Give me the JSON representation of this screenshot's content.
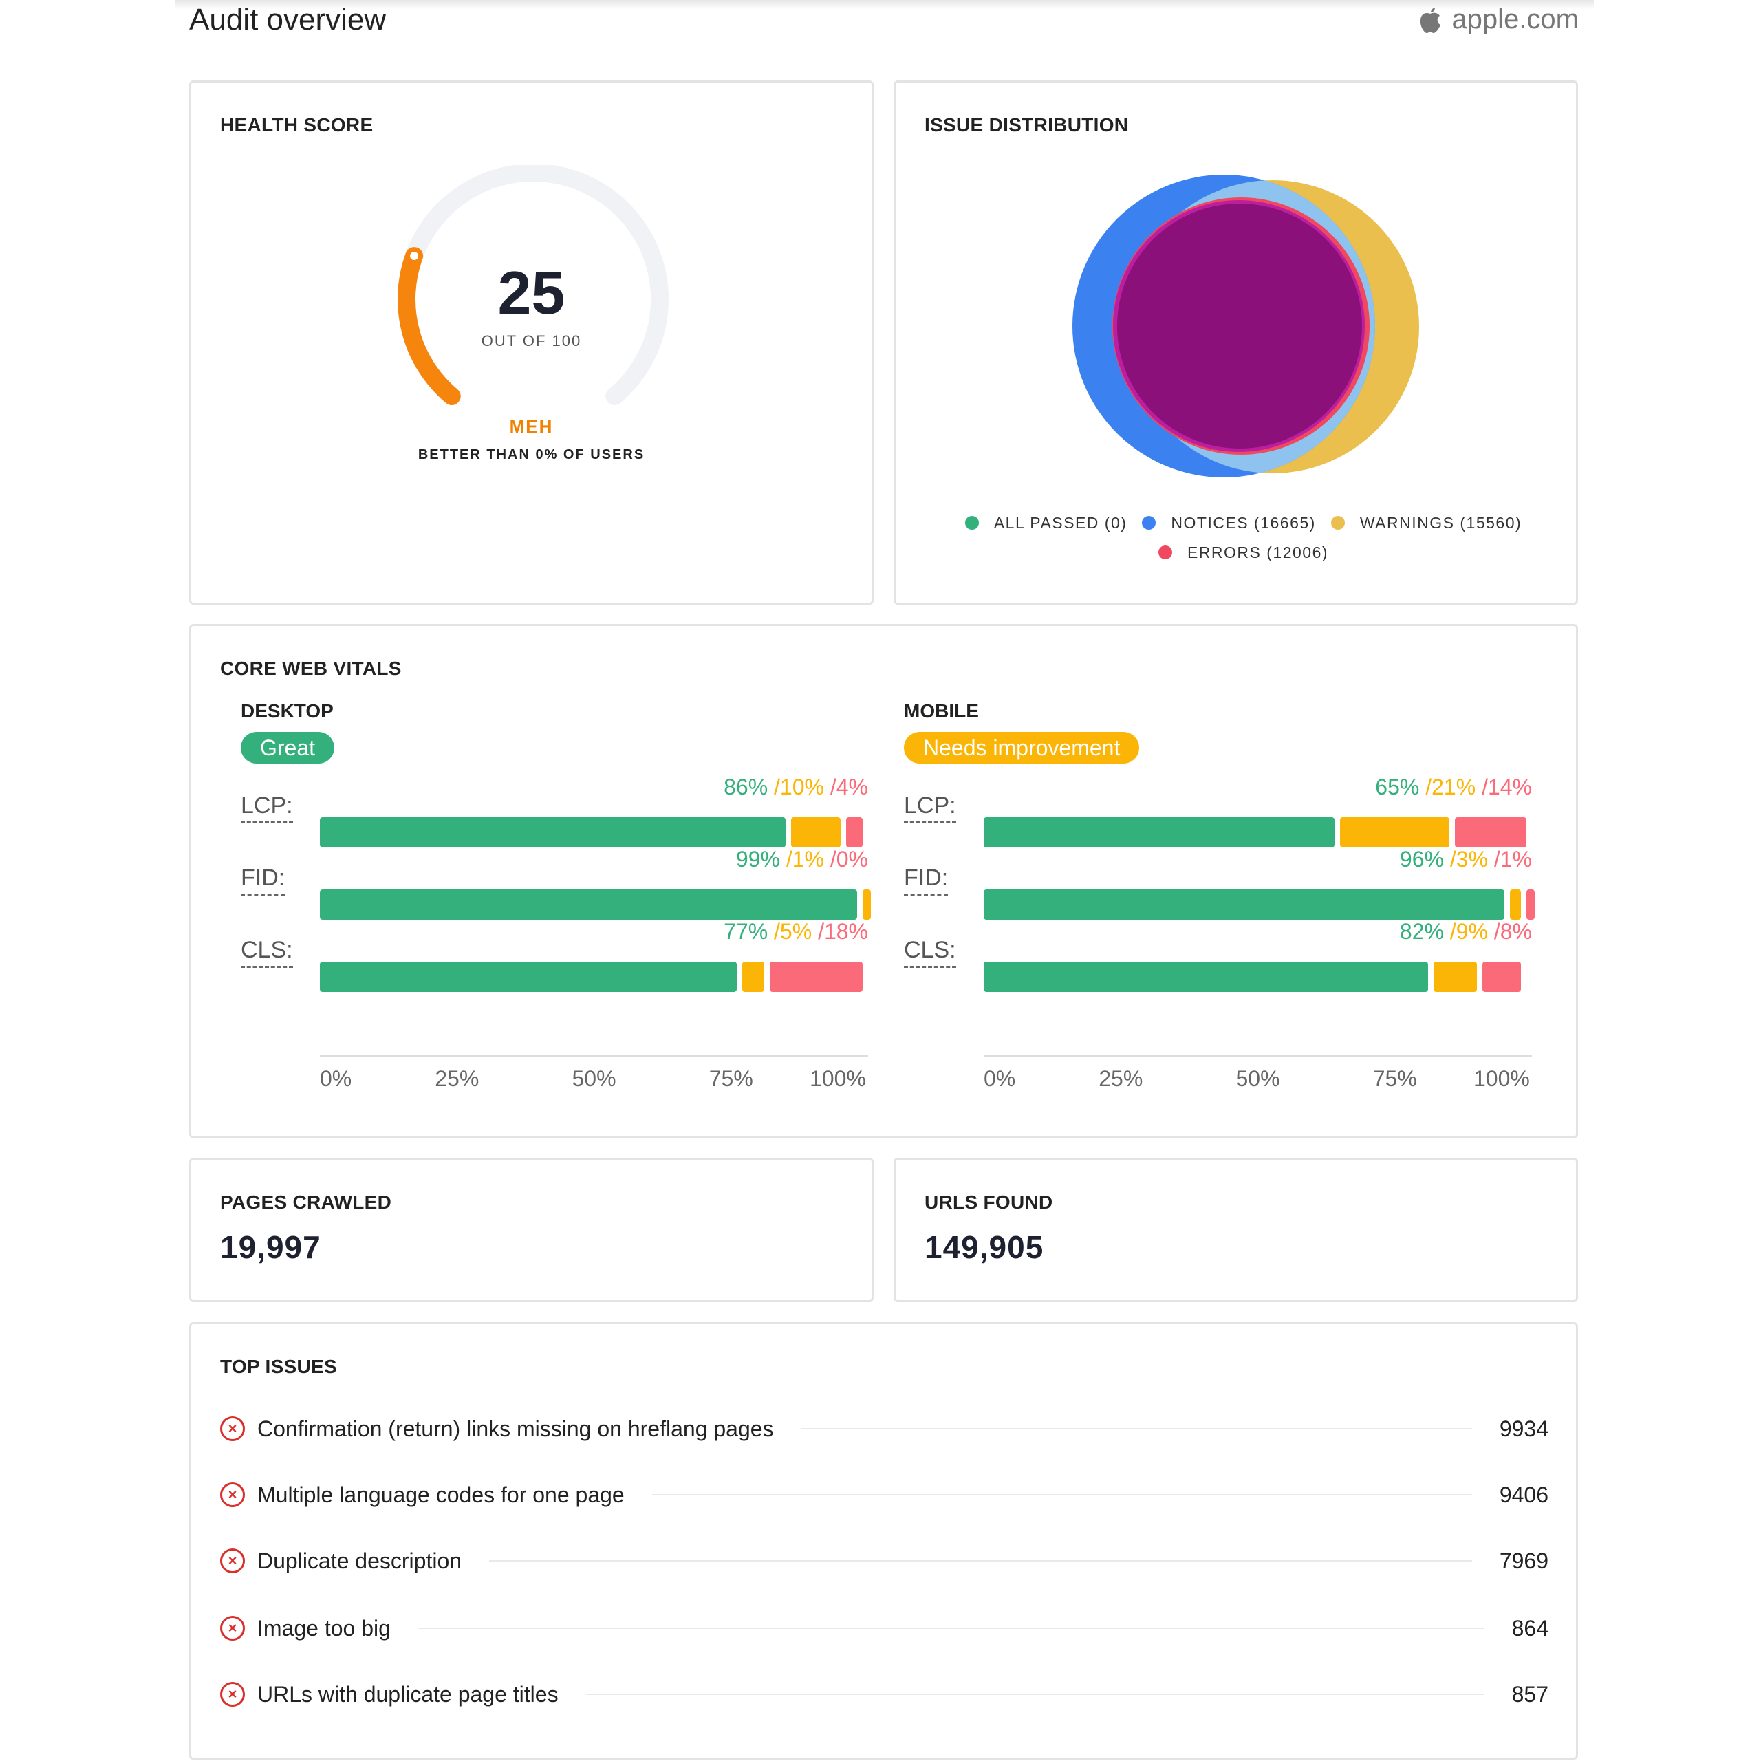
{
  "header": {
    "title": "Audit overview",
    "domain": "apple.com",
    "domain_icon": "apple-logo-icon"
  },
  "health": {
    "title": "HEALTH SCORE",
    "score": "25",
    "score_value": 25,
    "out_of": "OUT OF 100",
    "rating": "MEH",
    "better_than": "BETTER THAN 0% OF USERS",
    "color": "#f5850c"
  },
  "distribution": {
    "title": "ISSUE DISTRIBUTION",
    "legend": [
      {
        "label": "ALL PASSED (0)",
        "color": "#33b07c"
      },
      {
        "label": "NOTICES (16665)",
        "color": "#3b82f0"
      },
      {
        "label": "WARNINGS (15560)",
        "color": "#eabf4e"
      },
      {
        "label": "ERRORS (12006)",
        "color": "#f0485e"
      }
    ],
    "chart_data": {
      "type": "venn",
      "sets": [
        {
          "name": "ALL PASSED",
          "value": 0,
          "color": "#33b07c"
        },
        {
          "name": "NOTICES",
          "value": 16665,
          "color": "#3b82f0"
        },
        {
          "name": "WARNINGS",
          "value": 15560,
          "color": "#eabf4e"
        },
        {
          "name": "ERRORS",
          "value": 12006,
          "color": "#f0485e"
        }
      ]
    }
  },
  "cwv": {
    "title": "CORE WEB VITALS",
    "desktop": {
      "label": "DESKTOP",
      "status": "Great",
      "status_color": "#33b07c",
      "metrics": [
        {
          "name": "LCP:",
          "good": 86,
          "ni": 10,
          "poor": 4,
          "good_label": "86%",
          "ni_label": " /10%",
          "poor_label": " /4%"
        },
        {
          "name": "FID:",
          "good": 99,
          "ni": 1,
          "poor": 0,
          "good_label": "99%",
          "ni_label": " /1%",
          "poor_label": " /0%"
        },
        {
          "name": "CLS:",
          "good": 77,
          "ni": 5,
          "poor": 18,
          "good_label": "77%",
          "ni_label": " /5%",
          "poor_label": " /18%"
        }
      ]
    },
    "mobile": {
      "label": "MOBILE",
      "status": "Needs improvement",
      "status_color": "#fbb507",
      "metrics": [
        {
          "name": "LCP:",
          "good": 65,
          "ni": 21,
          "poor": 14,
          "good_label": "65%",
          "ni_label": " /21%",
          "poor_label": " /14%"
        },
        {
          "name": "FID:",
          "good": 96,
          "ni": 3,
          "poor": 1,
          "good_label": "96%",
          "ni_label": " /3%",
          "poor_label": " /1%"
        },
        {
          "name": "CLS:",
          "good": 82,
          "ni": 9,
          "poor": 8,
          "good_label": "82%",
          "ni_label": " /9%",
          "poor_label": " /8%"
        }
      ]
    },
    "axis_ticks": [
      "0%",
      "25%",
      "50%",
      "75%",
      "100%"
    ],
    "colors": {
      "good": "#33b07c",
      "ni": "#fbb507",
      "poor": "#fb6a79"
    }
  },
  "pages_crawled": {
    "title": "PAGES CRAWLED",
    "value": "19,997"
  },
  "urls_found": {
    "title": "URLS FOUND",
    "value": "149,905"
  },
  "top_issues": {
    "title": "TOP ISSUES",
    "icon": "error-circle-icon",
    "items": [
      {
        "label": "Confirmation (return) links missing on hreflang pages",
        "count": "9934"
      },
      {
        "label": "Multiple language codes for one page",
        "count": "9406"
      },
      {
        "label": "Duplicate description",
        "count": "7969"
      },
      {
        "label": "Image too big",
        "count": "864"
      },
      {
        "label": "URLs with duplicate page titles",
        "count": "857"
      }
    ]
  }
}
